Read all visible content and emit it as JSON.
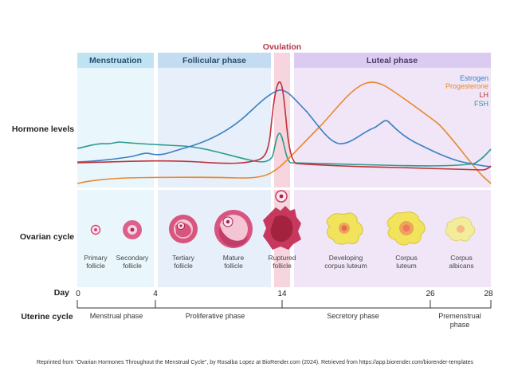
{
  "title_top": "Ovulation",
  "phases": {
    "menstruation": "Menstruation",
    "follicular": "Follicular phase",
    "luteal": "Luteal phase"
  },
  "row_labels": {
    "hormone": "Hormone levels",
    "ovarian": "Ovarian cycle",
    "day": "Day",
    "uterine": "Uterine cycle"
  },
  "legend": [
    {
      "label": "Estrogen",
      "color": "#3a7fc1"
    },
    {
      "label": "Progesterone",
      "color": "#e8892e"
    },
    {
      "label": "LH",
      "color": "#c0323a"
    },
    {
      "label": "FSH",
      "color": "#2a9a8f"
    }
  ],
  "follicles": [
    {
      "line1": "Primary",
      "line2": "follicle"
    },
    {
      "line1": "Secondary",
      "line2": "follicle"
    },
    {
      "line1": "Tertiary",
      "line2": "follicle"
    },
    {
      "line1": "Mature",
      "line2": "follicle"
    },
    {
      "line1": "Ruptured",
      "line2": "follicle"
    },
    {
      "line1": "Developing",
      "line2": "corpus luteum"
    },
    {
      "line1": "Corpus",
      "line2": "luteum"
    },
    {
      "line1": "Corpus",
      "line2": "albicans"
    }
  ],
  "days": [
    "0",
    "4",
    "14",
    "26",
    "28"
  ],
  "uterine_phases": {
    "menstrual": "Menstrual phase",
    "proliferative": "Proliferative phase",
    "secretory": "Secretory phase",
    "premenstrual_1": "Premenstrual",
    "premenstrual_2": "phase"
  },
  "citation": "Reprinted from \"Ovarian Hormones Throughout the Menstrual Cycle\", by Rosalba Lopez at BioRender.com (2024). Retrieved from https://app.biorender.com/biorender-templates"
}
